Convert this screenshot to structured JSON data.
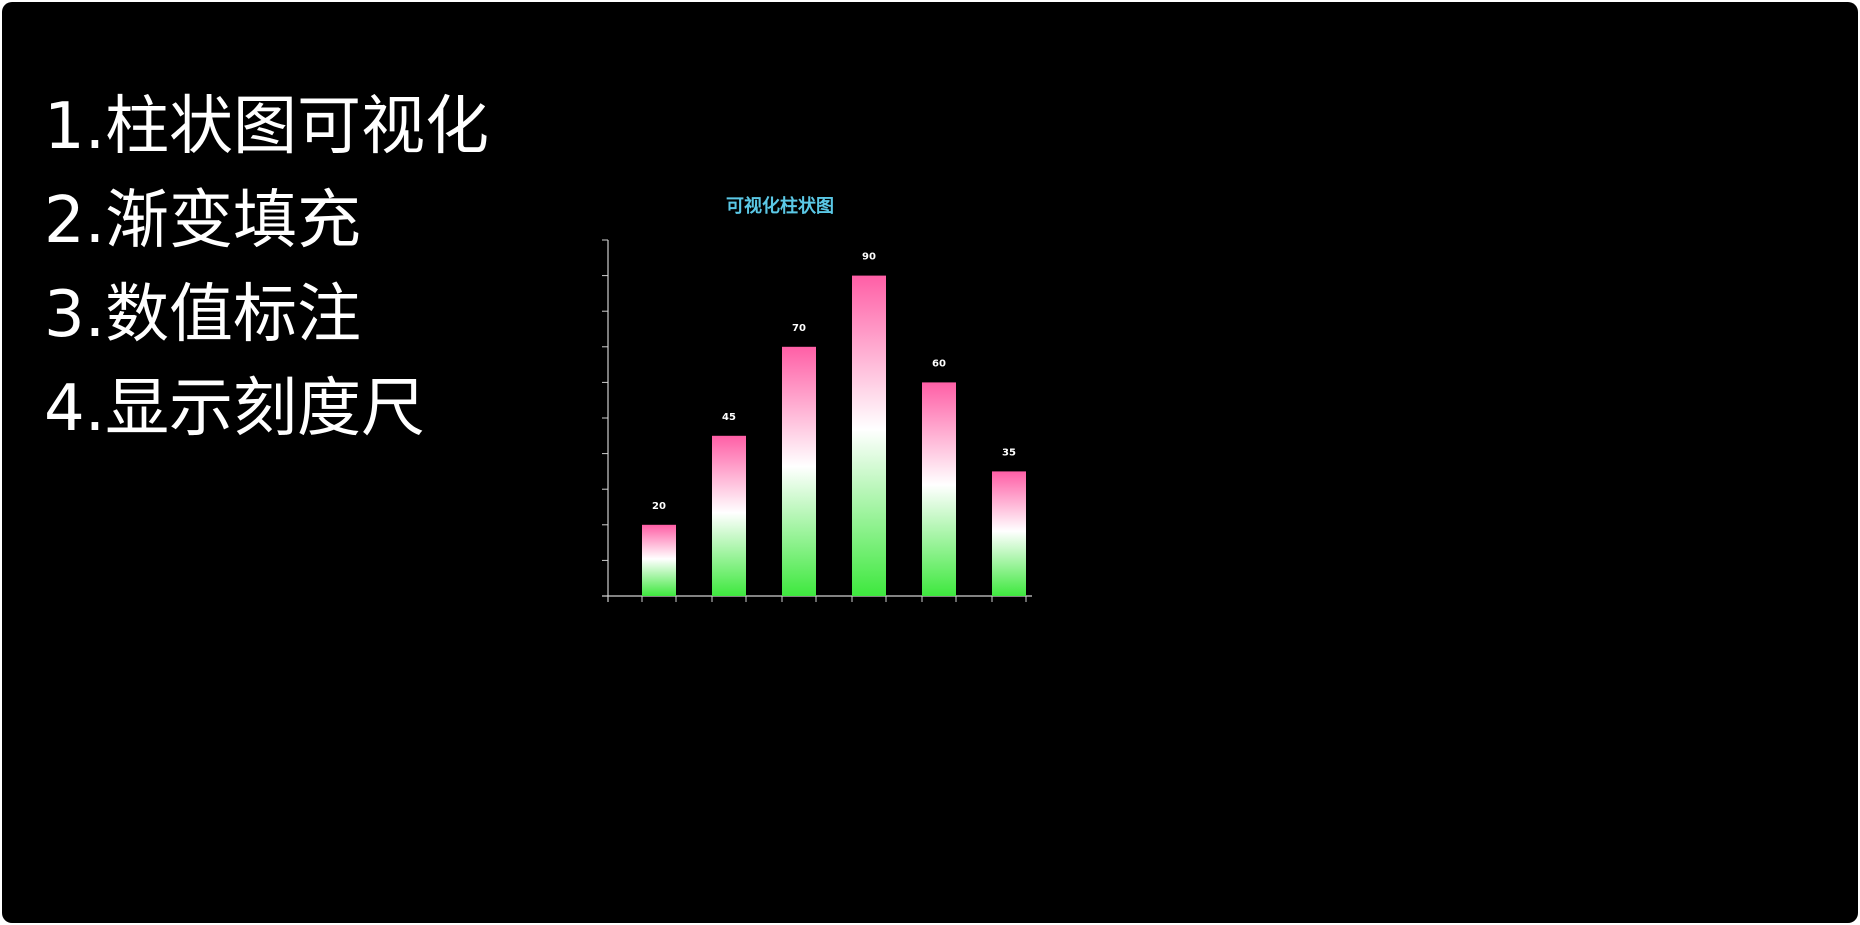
{
  "features": [
    "1.柱状图可视化",
    "2.渐变填充",
    "3.数值标注",
    "4.显示刻度尺"
  ],
  "colors": {
    "background": "#000000",
    "title": "#5bc8e6",
    "axis": "#cfcfcf",
    "label": "#ffffff",
    "gradient_top": "#ff5fa6",
    "gradient_mid": "#ffffff",
    "gradient_bottom": "#3ee83e"
  },
  "chart_data": {
    "type": "bar",
    "title": "可视化柱状图",
    "values": [
      20,
      45,
      70,
      90,
      60,
      35
    ],
    "ylim": [
      0,
      100
    ],
    "y_ticks": 10,
    "fill": "vertical gradient pink to white to green",
    "value_labels": true,
    "grid": false
  }
}
